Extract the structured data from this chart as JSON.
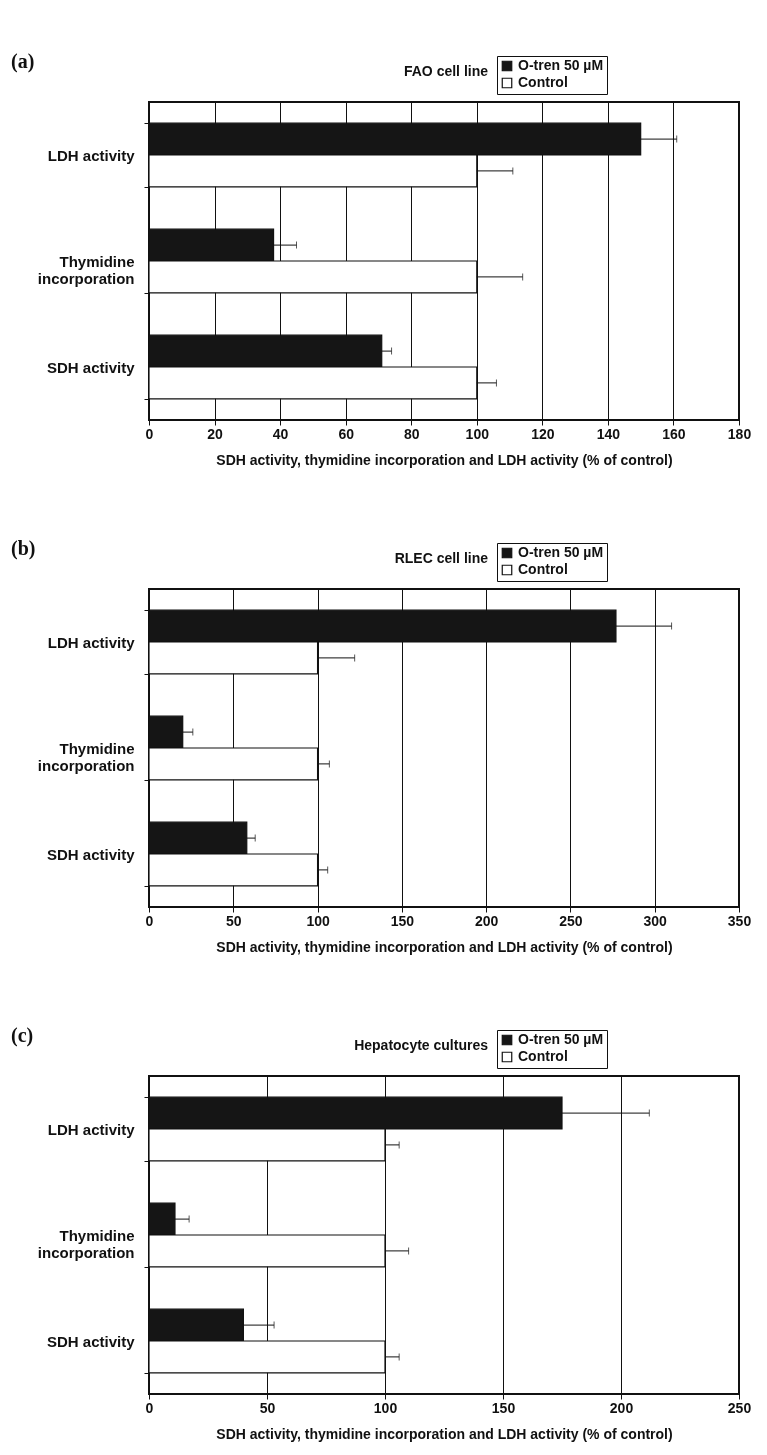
{
  "chart_data": [
    {
      "type": "bar",
      "orientation": "horizontal",
      "title": "FAO cell line",
      "xlabel": "SDH activity, thymidine incorporation and LDH activity (% of control)",
      "annotations": [
        "(a)"
      ],
      "categories": [
        "LDH activity",
        "Thymidine incorporation",
        "SDH activity"
      ],
      "series": [
        {
          "name": "O-tren 50 µM",
          "color": "#151515",
          "values": [
            150,
            38,
            71
          ],
          "errors": [
            [
              150,
              161
            ],
            [
              38,
              45
            ],
            [
              71,
              74
            ]
          ]
        },
        {
          "name": "Control",
          "color": "#ffffff",
          "values": [
            100,
            100,
            100
          ],
          "errors": [
            [
              100,
              111
            ],
            [
              100,
              114
            ],
            [
              100,
              106
            ]
          ]
        }
      ],
      "xlim": [
        0,
        180
      ],
      "xticks": [
        0,
        20,
        40,
        60,
        80,
        100,
        120,
        140,
        160,
        180
      ],
      "grid": "x",
      "legend": "top right"
    },
    {
      "type": "bar",
      "orientation": "horizontal",
      "title": "RLEC cell line",
      "xlabel": "SDH activity, thymidine incorporation and LDH activity (% of control)",
      "annotations": [
        "(b)"
      ],
      "categories": [
        "LDH activity",
        "Thymidine incorporation",
        "SDH activity"
      ],
      "series": [
        {
          "name": "O-tren 50 µM",
          "color": "#151515",
          "values": [
            277,
            20,
            58
          ],
          "errors": [
            [
              277,
              310
            ],
            [
              20,
              26
            ],
            [
              58,
              63
            ]
          ]
        },
        {
          "name": "Control",
          "color": "#ffffff",
          "values": [
            100,
            100,
            100
          ],
          "errors": [
            [
              100,
              122
            ],
            [
              100,
              107
            ],
            [
              100,
              106
            ]
          ]
        }
      ],
      "xlim": [
        0,
        350
      ],
      "xticks": [
        0,
        50,
        100,
        150,
        200,
        250,
        300,
        350
      ],
      "grid": "x",
      "legend": "top right"
    },
    {
      "type": "bar",
      "orientation": "horizontal",
      "title": "Hepatocyte cultures",
      "xlabel": "SDH activity, thymidine incorporation and LDH activity (% of control)",
      "annotations": [
        "(c)"
      ],
      "categories": [
        "LDH activity",
        "Thymidine incorporation",
        "SDH activity"
      ],
      "series": [
        {
          "name": "O-tren 50 µM",
          "color": "#151515",
          "values": [
            175,
            11,
            40
          ],
          "errors": [
            [
              175,
              212
            ],
            [
              11,
              17
            ],
            [
              40,
              53
            ]
          ]
        },
        {
          "name": "Control",
          "color": "#ffffff",
          "values": [
            100,
            100,
            100
          ],
          "errors": [
            [
              100,
              106
            ],
            [
              100,
              110
            ],
            [
              100,
              106
            ]
          ]
        }
      ],
      "xlim": [
        0,
        250
      ],
      "xticks": [
        0,
        50,
        100,
        150,
        200,
        250
      ],
      "grid": "x",
      "legend": "top right"
    }
  ]
}
